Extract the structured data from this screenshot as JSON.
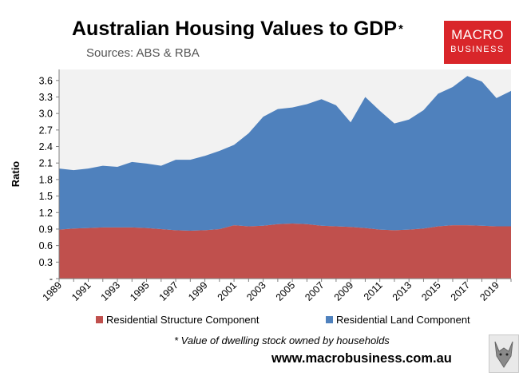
{
  "header": {
    "title": "Australian Housing Values to GDP",
    "title_mark": "*",
    "subtitle": "Sources: ABS & RBA"
  },
  "logo": {
    "line1": "MACRO",
    "line2": "BUSINESS"
  },
  "footer": {
    "footnote": "* Value of dwelling stock owned by households",
    "url": "www.macrobusiness.com.au"
  },
  "colors": {
    "structure": "#c0504d",
    "land": "#4f81bd",
    "plot_bg": "#f2f2f2",
    "logo": "#d9262a"
  },
  "chart_data": {
    "type": "area",
    "stacked": true,
    "title": "Australian Housing Values to GDP",
    "xlabel": "",
    "ylabel": "Ratio",
    "ylim": [
      0,
      3.8
    ],
    "xlim": [
      1989,
      2020
    ],
    "grid": false,
    "legend_position": "bottom",
    "y_ticks": [
      0,
      0.3,
      0.6,
      0.9,
      1.2,
      1.5,
      1.8,
      2.1,
      2.4,
      2.7,
      3.0,
      3.3,
      3.6
    ],
    "y_tick_labels": [
      "-",
      "0.3",
      "0.6",
      "0.9",
      "1.2",
      "1.5",
      "1.8",
      "2.1",
      "2.4",
      "2.7",
      "3.0",
      "3.3",
      "3.6"
    ],
    "x_tick_labels": [
      "1989",
      "1991",
      "1993",
      "1995",
      "1997",
      "1999",
      "2001",
      "2003",
      "2005",
      "2007",
      "2009",
      "2011",
      "2013",
      "2015",
      "2017",
      "2019"
    ],
    "x": [
      1989,
      1990,
      1991,
      1992,
      1993,
      1994,
      1995,
      1996,
      1997,
      1998,
      1999,
      2000,
      2001,
      2002,
      2003,
      2004,
      2005,
      2006,
      2007,
      2008,
      2009,
      2010,
      2011,
      2012,
      2013,
      2014,
      2015,
      2016,
      2017,
      2018,
      2019,
      2020
    ],
    "series": [
      {
        "name": "Residential Structure Component",
        "key": "structure",
        "values": [
          0.89,
          0.91,
          0.92,
          0.93,
          0.93,
          0.93,
          0.92,
          0.9,
          0.88,
          0.87,
          0.88,
          0.9,
          0.97,
          0.95,
          0.96,
          0.99,
          1.0,
          0.99,
          0.96,
          0.95,
          0.94,
          0.92,
          0.89,
          0.88,
          0.89,
          0.91,
          0.95,
          0.97,
          0.97,
          0.96,
          0.95,
          0.95
        ]
      },
      {
        "name": "Residential Land Component",
        "key": "land",
        "values": [
          1.11,
          1.06,
          1.08,
          1.12,
          1.1,
          1.19,
          1.17,
          1.15,
          1.28,
          1.29,
          1.35,
          1.42,
          1.46,
          1.69,
          1.98,
          2.09,
          2.11,
          2.18,
          2.3,
          2.2,
          1.9,
          2.38,
          2.16,
          1.94,
          2.0,
          2.15,
          2.41,
          2.51,
          2.71,
          2.62,
          2.33,
          2.46
        ]
      }
    ]
  }
}
